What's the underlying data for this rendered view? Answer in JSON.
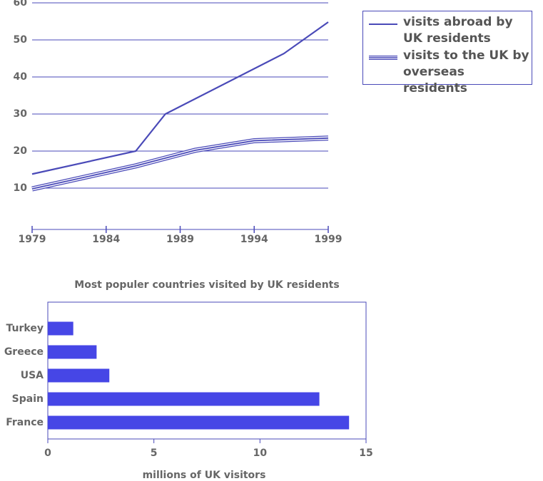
{
  "chart_data": [
    {
      "type": "line",
      "xlim": [
        1979,
        1999
      ],
      "xticks": [
        1979,
        1984,
        1989,
        1994,
        1999
      ],
      "ylim": [
        0,
        60
      ],
      "yticks": [
        10,
        20,
        30,
        40,
        50,
        60
      ],
      "grid": true,
      "legend": "top-right",
      "series": [
        {
          "name": "visits abroad by UK residents",
          "color": "#4a4ab8",
          "style": "single",
          "x": [
            1979,
            1986,
            1988,
            1996,
            1999
          ],
          "values": [
            13.8,
            20,
            30,
            46.3,
            54.8
          ]
        },
        {
          "name": "visits to the UK by overseas residents",
          "color": "#4a4ab8",
          "style": "triple",
          "x": [
            1979,
            1986,
            1990,
            1994,
            1999
          ],
          "values": [
            9.8,
            16,
            20.2,
            22.8,
            23.5
          ]
        }
      ]
    },
    {
      "type": "barh",
      "title": "Most populer countries visited by UK residents",
      "xlabel": "millions of UK visitors",
      "categories": [
        "Turkey",
        "Greece",
        "USA",
        "Spain",
        "France"
      ],
      "values": [
        1.2,
        2.3,
        2.9,
        12.8,
        14.2
      ],
      "color": "#4646e6",
      "xlim": [
        0,
        15
      ],
      "xticks": [
        0,
        5,
        10,
        15
      ]
    }
  ]
}
